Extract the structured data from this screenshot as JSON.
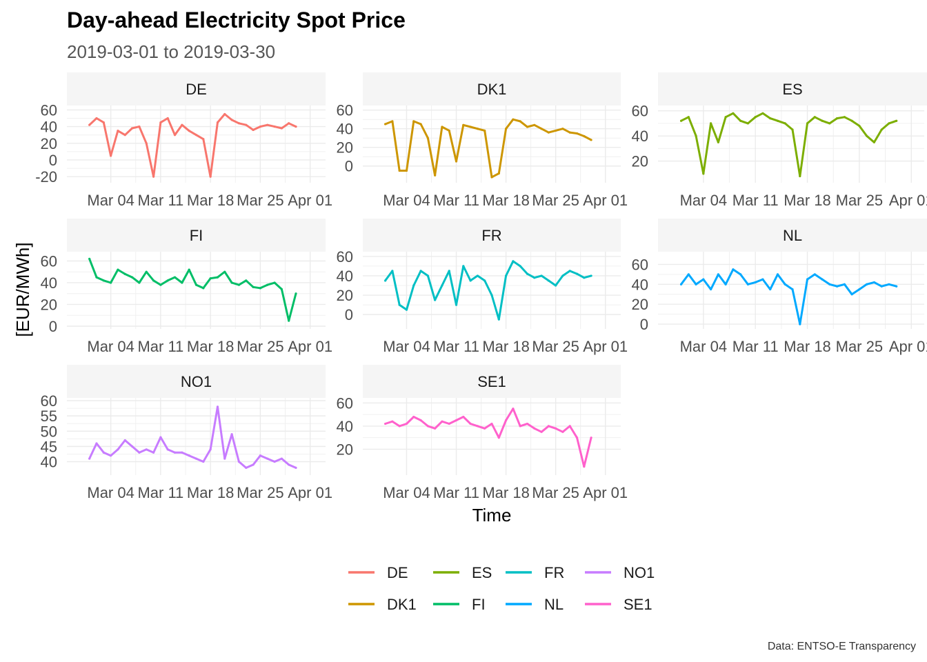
{
  "chart_data": {
    "type": "line",
    "title": "Day-ahead Electricity Spot Price",
    "subtitle": "2019-03-01 to 2019-03-30",
    "xlabel": "Time",
    "ylabel": "[EUR/MWh]",
    "caption": "Data: ENTSO-E Transparency",
    "xlim": [
      "2019-02-27",
      "2019-04-02"
    ],
    "x_ticks": [
      "Mar 04",
      "Mar 11",
      "Mar 18",
      "Mar 25",
      "Apr 01"
    ],
    "x_tick_dates": [
      "2019-03-04",
      "2019-03-11",
      "2019-03-18",
      "2019-03-25",
      "2019-04-01"
    ],
    "x": [
      "2019-03-01",
      "2019-03-02",
      "2019-03-03",
      "2019-03-04",
      "2019-03-05",
      "2019-03-06",
      "2019-03-07",
      "2019-03-08",
      "2019-03-09",
      "2019-03-10",
      "2019-03-11",
      "2019-03-12",
      "2019-03-13",
      "2019-03-14",
      "2019-03-15",
      "2019-03-16",
      "2019-03-17",
      "2019-03-18",
      "2019-03-19",
      "2019-03-20",
      "2019-03-21",
      "2019-03-22",
      "2019-03-23",
      "2019-03-24",
      "2019-03-25",
      "2019-03-26",
      "2019-03-27",
      "2019-03-28",
      "2019-03-29",
      "2019-03-30"
    ],
    "grid": true,
    "legend_position": "bottom",
    "facets": [
      {
        "name": "DE",
        "color": "#F8766D",
        "ylim": [
          -24,
          62
        ],
        "y_ticks": [
          -20,
          0,
          20,
          40,
          60
        ],
        "values": [
          42,
          50,
          45,
          5,
          35,
          30,
          38,
          40,
          20,
          -20,
          45,
          50,
          30,
          42,
          35,
          30,
          25,
          -20,
          45,
          55,
          48,
          44,
          42,
          36,
          40,
          42,
          40,
          38,
          44,
          40
        ]
      },
      {
        "name": "DK1",
        "color": "#CD9600",
        "ylim": [
          -15,
          62
        ],
        "y_ticks": [
          0,
          20,
          40,
          60
        ],
        "values": [
          45,
          48,
          -5,
          -5,
          48,
          45,
          30,
          -10,
          42,
          38,
          5,
          44,
          42,
          40,
          38,
          -12,
          -8,
          40,
          50,
          48,
          42,
          44,
          40,
          36,
          38,
          40,
          36,
          35,
          32,
          28
        ]
      },
      {
        "name": "ES",
        "color": "#7CAE00",
        "ylim": [
          5,
          62
        ],
        "y_ticks": [
          20,
          40,
          60
        ],
        "values": [
          52,
          55,
          40,
          10,
          50,
          35,
          55,
          58,
          52,
          50,
          55,
          58,
          54,
          52,
          50,
          45,
          8,
          50,
          55,
          52,
          50,
          54,
          55,
          52,
          48,
          40,
          35,
          45,
          50,
          52
        ]
      },
      {
        "name": "FI",
        "color": "#00BE67",
        "ylim": [
          0,
          66
        ],
        "y_ticks": [
          0,
          20,
          40,
          60
        ],
        "values": [
          62,
          45,
          42,
          40,
          52,
          48,
          45,
          40,
          50,
          42,
          38,
          42,
          45,
          40,
          52,
          38,
          35,
          44,
          45,
          50,
          40,
          38,
          42,
          36,
          35,
          38,
          40,
          34,
          5,
          30
        ]
      },
      {
        "name": "FR",
        "color": "#00BFC4",
        "ylim": [
          -12,
          62
        ],
        "y_ticks": [
          0,
          20,
          40,
          60
        ],
        "values": [
          35,
          45,
          10,
          5,
          30,
          45,
          40,
          15,
          30,
          45,
          10,
          50,
          35,
          40,
          35,
          20,
          -5,
          40,
          55,
          50,
          42,
          38,
          40,
          35,
          30,
          40,
          45,
          42,
          38,
          40
        ]
      },
      {
        "name": "NL",
        "color": "#00A9FF",
        "ylim": [
          -2,
          70
        ],
        "y_ticks": [
          0,
          20,
          40,
          60
        ],
        "values": [
          40,
          50,
          40,
          45,
          35,
          50,
          40,
          55,
          50,
          40,
          42,
          45,
          35,
          50,
          40,
          35,
          0,
          45,
          50,
          45,
          40,
          38,
          40,
          30,
          35,
          40,
          42,
          38,
          40,
          38
        ]
      },
      {
        "name": "NO1",
        "color": "#C77CFF",
        "ylim": [
          36.5,
          60
        ],
        "y_ticks": [
          40,
          45,
          50,
          55,
          60
        ],
        "values": [
          41,
          46,
          43,
          42,
          44,
          47,
          45,
          43,
          44,
          43,
          48,
          44,
          43,
          43,
          42,
          41,
          40,
          44,
          58,
          41,
          49,
          40,
          38,
          39,
          42,
          41,
          40,
          41,
          39,
          38
        ]
      },
      {
        "name": "SE1",
        "color": "#FF61CC",
        "ylim": [
          0,
          62
        ],
        "y_ticks": [
          20,
          40,
          60
        ],
        "values": [
          42,
          44,
          40,
          42,
          48,
          45,
          40,
          38,
          44,
          42,
          45,
          48,
          42,
          40,
          38,
          42,
          30,
          45,
          55,
          40,
          42,
          38,
          35,
          40,
          38,
          35,
          40,
          30,
          5,
          30
        ]
      }
    ],
    "legend": [
      {
        "name": "DE",
        "color": "#F8766D"
      },
      {
        "name": "DK1",
        "color": "#CD9600"
      },
      {
        "name": "ES",
        "color": "#7CAE00"
      },
      {
        "name": "FI",
        "color": "#00BE67"
      },
      {
        "name": "FR",
        "color": "#00BFC4"
      },
      {
        "name": "NL",
        "color": "#00A9FF"
      },
      {
        "name": "NO1",
        "color": "#C77CFF"
      },
      {
        "name": "SE1",
        "color": "#FF61CC"
      }
    ]
  }
}
